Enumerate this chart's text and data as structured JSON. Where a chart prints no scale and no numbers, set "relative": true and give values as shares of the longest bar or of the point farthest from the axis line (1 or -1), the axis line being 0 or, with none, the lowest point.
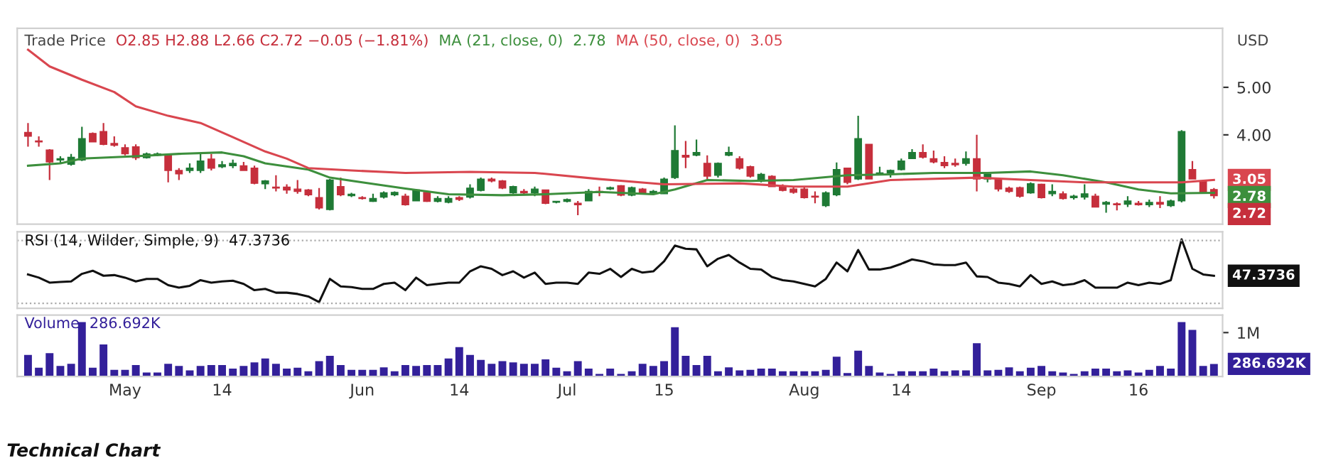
{
  "chart_data": [
    {
      "type": "candlestick",
      "annotations": [
        "Technical Chart"
      ],
      "title": "Trade Price",
      "subtitle": "O2.85 H2.88 L2.66 C2.72 −0.05 (−1.81%)",
      "ylabel": "USD",
      "tick_labels": "y",
      "ylim": [
        2.12,
        6.24
      ],
      "yticks": [
        {
          "value": 4,
          "label": "4.00"
        },
        {
          "value": 5,
          "label": "5.00"
        }
      ],
      "series": [
        {
          "type": "candlestick",
          "ohlc": [
            [
              4.05,
              4.25,
              3.75,
              3.97
            ],
            [
              3.87,
              3.97,
              3.75,
              3.85
            ],
            [
              3.68,
              3.7,
              3.05,
              3.43
            ],
            [
              3.47,
              3.55,
              3.4,
              3.5
            ],
            [
              3.38,
              3.6,
              3.35,
              3.53
            ],
            [
              3.47,
              4.17,
              3.45,
              3.92
            ],
            [
              4.03,
              4.05,
              3.85,
              3.85
            ],
            [
              4.07,
              4.25,
              3.78,
              3.8
            ],
            [
              3.82,
              3.97,
              3.75,
              3.78
            ],
            [
              3.73,
              3.8,
              3.57,
              3.6
            ],
            [
              3.75,
              3.8,
              3.47,
              3.52
            ],
            [
              3.52,
              3.63,
              3.5,
              3.6
            ],
            [
              3.57,
              3.63,
              3.55,
              3.6
            ],
            [
              3.57,
              3.6,
              3.0,
              3.25
            ],
            [
              3.25,
              3.3,
              3.05,
              3.18
            ],
            [
              3.25,
              3.4,
              3.2,
              3.3
            ],
            [
              3.25,
              3.6,
              3.2,
              3.45
            ],
            [
              3.49,
              3.6,
              3.25,
              3.3
            ],
            [
              3.33,
              3.45,
              3.3,
              3.37
            ],
            [
              3.35,
              3.48,
              3.3,
              3.4
            ],
            [
              3.35,
              3.43,
              3.25,
              3.25
            ],
            [
              3.3,
              3.35,
              2.96,
              2.98
            ],
            [
              2.97,
              3.05,
              2.86,
              3.03
            ],
            [
              2.9,
              3.15,
              2.81,
              2.88
            ],
            [
              2.9,
              2.96,
              2.76,
              2.84
            ],
            [
              2.86,
              3.05,
              2.76,
              2.81
            ],
            [
              2.84,
              2.86,
              2.71,
              2.74
            ],
            [
              2.68,
              2.88,
              2.43,
              2.46
            ],
            [
              2.43,
              3.07,
              2.41,
              3.05
            ],
            [
              2.91,
              3.1,
              2.71,
              2.74
            ],
            [
              2.72,
              2.78,
              2.69,
              2.75
            ],
            [
              2.68,
              2.71,
              2.64,
              2.66
            ],
            [
              2.6,
              2.76,
              2.59,
              2.66
            ],
            [
              2.69,
              2.81,
              2.66,
              2.78
            ],
            [
              2.74,
              2.81,
              2.71,
              2.79
            ],
            [
              2.71,
              2.76,
              2.51,
              2.53
            ],
            [
              2.61,
              2.86,
              2.61,
              2.84
            ],
            [
              2.79,
              2.81,
              2.59,
              2.6
            ],
            [
              2.6,
              2.71,
              2.58,
              2.66
            ],
            [
              2.58,
              2.71,
              2.56,
              2.66
            ],
            [
              2.68,
              2.71,
              2.61,
              2.64
            ],
            [
              2.69,
              2.96,
              2.66,
              2.88
            ],
            [
              2.83,
              3.1,
              2.81,
              3.07
            ],
            [
              3.07,
              3.1,
              3.0,
              3.03
            ],
            [
              3.03,
              3.05,
              2.86,
              2.88
            ],
            [
              2.78,
              2.93,
              2.76,
              2.91
            ],
            [
              2.81,
              2.86,
              2.74,
              2.78
            ],
            [
              2.78,
              2.91,
              2.71,
              2.86
            ],
            [
              2.84,
              2.84,
              2.54,
              2.56
            ],
            [
              2.58,
              2.61,
              2.56,
              2.6
            ],
            [
              2.6,
              2.66,
              2.58,
              2.64
            ],
            [
              2.56,
              2.61,
              2.31,
              2.53
            ],
            [
              2.61,
              2.86,
              2.61,
              2.81
            ],
            [
              2.81,
              2.91,
              2.71,
              2.79
            ],
            [
              2.86,
              2.91,
              2.84,
              2.89
            ],
            [
              2.93,
              2.94,
              2.71,
              2.73
            ],
            [
              2.73,
              2.91,
              2.71,
              2.89
            ],
            [
              2.86,
              2.88,
              2.76,
              2.78
            ],
            [
              2.76,
              2.84,
              2.74,
              2.81
            ],
            [
              2.76,
              3.1,
              2.76,
              3.07
            ],
            [
              3.1,
              4.2,
              3.07,
              3.67
            ],
            [
              3.57,
              3.87,
              3.3,
              3.53
            ],
            [
              3.57,
              3.9,
              3.55,
              3.63
            ],
            [
              3.4,
              3.57,
              3.07,
              3.13
            ],
            [
              3.15,
              3.42,
              3.1,
              3.4
            ],
            [
              3.57,
              3.75,
              3.55,
              3.63
            ],
            [
              3.5,
              3.55,
              3.27,
              3.3
            ],
            [
              3.33,
              3.35,
              3.1,
              3.13
            ],
            [
              3.03,
              3.2,
              3.0,
              3.17
            ],
            [
              3.13,
              3.15,
              2.91,
              2.91
            ],
            [
              2.91,
              2.96,
              2.81,
              2.83
            ],
            [
              2.86,
              2.91,
              2.76,
              2.79
            ],
            [
              2.86,
              2.91,
              2.66,
              2.68
            ],
            [
              2.71,
              2.81,
              2.56,
              2.69
            ],
            [
              2.51,
              2.81,
              2.48,
              2.78
            ],
            [
              2.74,
              3.42,
              2.71,
              3.27
            ],
            [
              3.3,
              3.3,
              2.96,
              3.0
            ],
            [
              3.07,
              4.4,
              3.05,
              3.92
            ],
            [
              3.8,
              3.8,
              3.07,
              3.07
            ],
            [
              3.17,
              3.33,
              3.15,
              3.2
            ],
            [
              3.2,
              3.27,
              3.1,
              3.25
            ],
            [
              3.27,
              3.5,
              3.25,
              3.45
            ],
            [
              3.5,
              3.7,
              3.5,
              3.63
            ],
            [
              3.63,
              3.8,
              3.5,
              3.53
            ],
            [
              3.5,
              3.67,
              3.4,
              3.43
            ],
            [
              3.42,
              3.55,
              3.3,
              3.35
            ],
            [
              3.4,
              3.5,
              3.33,
              3.37
            ],
            [
              3.4,
              3.65,
              3.35,
              3.5
            ],
            [
              3.5,
              4.0,
              2.81,
              3.07
            ],
            [
              3.07,
              3.2,
              3.0,
              3.17
            ],
            [
              3.07,
              3.1,
              2.81,
              2.86
            ],
            [
              2.88,
              2.91,
              2.78,
              2.81
            ],
            [
              2.89,
              2.91,
              2.68,
              2.71
            ],
            [
              2.78,
              3.0,
              2.76,
              2.97
            ],
            [
              2.96,
              2.97,
              2.66,
              2.68
            ],
            [
              2.76,
              2.96,
              2.71,
              2.81
            ],
            [
              2.76,
              2.81,
              2.64,
              2.66
            ],
            [
              2.68,
              2.74,
              2.64,
              2.71
            ],
            [
              2.69,
              2.96,
              2.64,
              2.76
            ],
            [
              2.71,
              2.76,
              2.48,
              2.48
            ],
            [
              2.54,
              2.61,
              2.36,
              2.58
            ],
            [
              2.55,
              2.58,
              2.41,
              2.53
            ],
            [
              2.54,
              2.71,
              2.48,
              2.61
            ],
            [
              2.56,
              2.61,
              2.51,
              2.53
            ],
            [
              2.53,
              2.64,
              2.48,
              2.58
            ],
            [
              2.58,
              2.71,
              2.46,
              2.54
            ],
            [
              2.51,
              2.64,
              2.48,
              2.61
            ],
            [
              2.61,
              4.1,
              2.58,
              4.07
            ],
            [
              3.27,
              3.45,
              3.07,
              3.07
            ],
            [
              3.03,
              3.05,
              2.76,
              2.78
            ],
            [
              2.85,
              2.88,
              2.66,
              2.72
            ]
          ],
          "colors": [
            "#c62f3c",
            "#c62f3c",
            "#c62f3c",
            "#1f7a35",
            "#1f7a35",
            "#1f7a35",
            "#c62f3c",
            "#c62f3c",
            "#c62f3c",
            "#c62f3c",
            "#c62f3c",
            "#1f7a35",
            "#1f7a35",
            "#c62f3c",
            "#c62f3c",
            "#1f7a35",
            "#1f7a35",
            "#c62f3c",
            "#1f7a35",
            "#1f7a35",
            "#c62f3c",
            "#c62f3c",
            "#1f7a35",
            "#c62f3c",
            "#c62f3c",
            "#c62f3c",
            "#c62f3c",
            "#c62f3c",
            "#1f7a35",
            "#c62f3c",
            "#1f7a35",
            "#c62f3c",
            "#1f7a35",
            "#1f7a35",
            "#1f7a35",
            "#c62f3c",
            "#1f7a35",
            "#c62f3c",
            "#1f7a35",
            "#1f7a35",
            "#c62f3c",
            "#1f7a35",
            "#1f7a35",
            "#c62f3c",
            "#c62f3c",
            "#1f7a35",
            "#c62f3c",
            "#1f7a35",
            "#c62f3c",
            "#1f7a35",
            "#1f7a35",
            "#c62f3c",
            "#1f7a35",
            "#c62f3c",
            "#1f7a35",
            "#c62f3c",
            "#1f7a35",
            "#c62f3c",
            "#1f7a35",
            "#1f7a35",
            "#1f7a35",
            "#c62f3c",
            "#1f7a35",
            "#c62f3c",
            "#1f7a35",
            "#1f7a35",
            "#c62f3c",
            "#c62f3c",
            "#1f7a35",
            "#c62f3c",
            "#c62f3c",
            "#c62f3c",
            "#c62f3c",
            "#c62f3c",
            "#1f7a35",
            "#1f7a35",
            "#c62f3c",
            "#1f7a35",
            "#c62f3c",
            "#1f7a35",
            "#1f7a35",
            "#1f7a35",
            "#1f7a35",
            "#c62f3c",
            "#c62f3c",
            "#c62f3c",
            "#c62f3c",
            "#1f7a35",
            "#c62f3c",
            "#1f7a35",
            "#c62f3c",
            "#c62f3c",
            "#c62f3c",
            "#1f7a35",
            "#c62f3c",
            "#1f7a35",
            "#c62f3c",
            "#1f7a35",
            "#1f7a35",
            "#c62f3c",
            "#1f7a35",
            "#c62f3c",
            "#1f7a35",
            "#c62f3c",
            "#1f7a35",
            "#c62f3c",
            "#1f7a35",
            "#1f7a35",
            "#c62f3c",
            "#c62f3c",
            "#c62f3c"
          ],
          "value_labels": [
            null,
            null,
            null,
            null,
            null,
            null,
            null,
            null,
            null,
            null,
            null,
            null,
            null,
            null,
            null,
            null,
            null,
            null,
            null,
            null,
            null,
            null,
            null,
            null,
            null,
            null,
            null,
            null,
            null,
            null,
            null,
            null,
            null,
            null,
            null,
            null,
            null,
            null,
            null,
            null,
            null,
            null,
            null,
            null,
            null,
            null,
            null,
            null,
            null,
            null,
            null,
            null,
            null,
            null,
            null,
            null,
            null,
            null,
            null,
            null,
            null,
            null,
            null,
            null,
            null,
            null,
            null,
            null,
            null,
            null,
            null,
            null,
            null,
            null,
            null,
            null,
            null,
            null,
            null,
            null,
            null,
            null,
            null,
            null,
            null,
            null,
            null,
            null,
            null,
            null,
            null,
            null,
            null,
            null,
            null,
            null,
            null,
            null,
            null,
            null,
            null,
            null,
            null,
            null,
            null,
            null,
            null,
            null,
            null,
            null,
            "2.72"
          ]
        },
        {
          "type": "line",
          "name": "MA (21, close, 0)",
          "color": "#3d8f3d",
          "values": [
            3.35,
            null,
            null,
            3.4,
            null,
            3.5,
            null,
            null,
            null,
            null,
            3.55,
            null,
            null,
            null,
            3.6,
            null,
            null,
            null,
            3.63,
            null,
            3.55,
            null,
            3.4,
            null,
            null,
            null,
            3.27,
            null,
            3.1,
            null,
            null,
            3.0,
            null,
            null,
            null,
            2.87,
            null,
            null,
            null,
            2.75,
            null,
            null,
            null,
            null,
            2.73,
            null,
            null,
            null,
            2.75,
            null,
            null,
            null,
            null,
            2.8,
            null,
            null,
            null,
            null,
            2.75,
            null,
            2.85,
            null,
            null,
            3.05,
            null,
            null,
            null,
            3.03,
            null,
            null,
            null,
            3.05,
            null,
            null,
            null,
            null,
            3.15,
            null,
            null,
            null,
            3.17,
            null,
            null,
            null,
            3.2,
            null,
            null,
            null,
            null,
            3.2,
            null,
            null,
            null,
            3.23,
            null,
            null,
            3.15,
            null,
            null,
            null,
            3.0,
            null,
            null,
            2.85,
            null,
            null,
            2.77,
            null,
            null,
            null,
            2.78
          ],
          "value_labels": [
            null,
            null,
            null,
            null,
            null,
            null,
            null,
            null,
            null,
            null,
            null,
            null,
            null,
            null,
            null,
            null,
            null,
            null,
            null,
            null,
            null,
            null,
            null,
            null,
            null,
            null,
            null,
            null,
            null,
            null,
            null,
            null,
            null,
            null,
            null,
            null,
            null,
            null,
            null,
            null,
            null,
            null,
            null,
            null,
            null,
            null,
            null,
            null,
            null,
            null,
            null,
            null,
            null,
            null,
            null,
            null,
            null,
            null,
            null,
            null,
            null,
            null,
            null,
            null,
            null,
            null,
            null,
            null,
            null,
            null,
            null,
            null,
            null,
            null,
            null,
            null,
            null,
            null,
            null,
            null,
            null,
            null,
            null,
            null,
            null,
            null,
            null,
            null,
            null,
            null,
            null,
            null,
            null,
            null,
            null,
            null,
            null,
            null,
            null,
            null,
            null,
            null,
            null,
            null,
            null,
            null,
            null,
            null,
            null,
            null,
            "2.78"
          ]
        },
        {
          "type": "line",
          "name": "MA (50, close, 0)",
          "color": "#d9464f",
          "values": [
            5.79,
            null,
            5.44,
            null,
            null,
            5.16,
            null,
            null,
            4.9,
            null,
            4.6,
            null,
            null,
            4.4,
            null,
            null,
            4.25,
            null,
            null,
            3.95,
            null,
            null,
            3.65,
            null,
            3.5,
            null,
            3.3,
            null,
            null,
            null,
            3.25,
            null,
            null,
            null,
            null,
            3.2,
            null,
            null,
            null,
            null,
            null,
            3.22,
            null,
            null,
            null,
            null,
            null,
            3.2,
            null,
            null,
            null,
            null,
            null,
            3.07,
            null,
            null,
            null,
            null,
            null,
            2.96,
            null,
            null,
            null,
            null,
            null,
            null,
            2.98,
            null,
            null,
            null,
            null,
            2.91,
            null,
            null,
            null,
            null,
            2.91,
            null,
            null,
            null,
            3.05,
            null,
            null,
            null,
            null,
            null,
            null,
            null,
            3.1,
            null,
            null,
            null,
            null,
            3.05,
            null,
            null,
            null,
            null,
            3.0,
            null,
            null,
            null,
            3.0,
            null,
            null,
            null,
            null,
            3.0,
            null,
            null,
            3.05
          ],
          "value_labels": [
            null,
            null,
            null,
            null,
            null,
            null,
            null,
            null,
            null,
            null,
            null,
            null,
            null,
            null,
            null,
            null,
            null,
            null,
            null,
            null,
            null,
            null,
            null,
            null,
            null,
            null,
            null,
            null,
            null,
            null,
            null,
            null,
            null,
            null,
            null,
            null,
            null,
            null,
            null,
            null,
            null,
            null,
            null,
            null,
            null,
            null,
            null,
            null,
            null,
            null,
            null,
            null,
            null,
            null,
            null,
            null,
            null,
            null,
            null,
            null,
            null,
            null,
            null,
            null,
            null,
            null,
            null,
            null,
            null,
            null,
            null,
            null,
            null,
            null,
            null,
            null,
            null,
            null,
            null,
            null,
            null,
            null,
            null,
            null,
            null,
            null,
            null,
            null,
            null,
            null,
            null,
            null,
            null,
            null,
            null,
            null,
            null,
            null,
            null,
            null,
            null,
            null,
            null,
            null,
            null,
            null,
            null,
            null,
            null,
            null,
            "3.05"
          ]
        }
      ]
    },
    {
      "type": "line",
      "relative": true,
      "tick_labels": false,
      "annotations": [
        "47.3736"
      ],
      "ref_lines": [
        {
          "axis": "y",
          "value": 0.98,
          "line_style": "dotted",
          "color": "#aaaaaa"
        },
        {
          "axis": "y",
          "value": -0.02,
          "line_style": "dotted",
          "color": "#aaaaaa"
        }
      ],
      "series": [
        {
          "name": "RSI (14, Wilder, Simple, 9)",
          "color": "#111111",
          "values": [
            0.44,
            0.39,
            0.31,
            0.32,
            0.33,
            0.45,
            0.5,
            0.42,
            0.43,
            0.39,
            0.33,
            0.37,
            0.37,
            0.27,
            0.23,
            0.26,
            0.35,
            0.31,
            0.33,
            0.34,
            0.29,
            0.19,
            0.21,
            0.15,
            0.15,
            0.13,
            0.09,
            0,
            0.37,
            0.25,
            0.24,
            0.21,
            0.21,
            0.29,
            0.31,
            0.19,
            0.39,
            0.27,
            0.29,
            0.31,
            0.31,
            0.49,
            0.57,
            0.53,
            0.43,
            0.49,
            0.39,
            0.47,
            0.29,
            0.31,
            0.31,
            0.29,
            0.47,
            0.45,
            0.53,
            0.4,
            0.53,
            0.47,
            0.49,
            0.65,
            0.9,
            0.85,
            0.84,
            0.57,
            0.69,
            0.75,
            0.63,
            0.53,
            0.52,
            0.4,
            0.35,
            0.33,
            0.29,
            0.25,
            0.37,
            0.63,
            0.49,
            0.83,
            0.52,
            0.52,
            0.55,
            0.61,
            0.68,
            0.65,
            0.6,
            0.59,
            0.59,
            0.63,
            0.41,
            0.4,
            0.31,
            0.29,
            0.25,
            0.43,
            0.29,
            0.33,
            0.27,
            0.29,
            0.35,
            0.23,
            0.23,
            0.23,
            0.31,
            0.27,
            0.31,
            0.29,
            0.35,
            1,
            0.53,
            0.44,
            0.42
          ]
        }
      ]
    },
    {
      "type": "bar",
      "annotations": [
        "286.692K"
      ],
      "categories": [
        null,
        null,
        null,
        null,
        null,
        null,
        null,
        null,
        null,
        "May",
        null,
        null,
        null,
        null,
        null,
        null,
        null,
        null,
        "14",
        null,
        null,
        null,
        null,
        null,
        null,
        null,
        null,
        null,
        null,
        null,
        null,
        "Jun",
        null,
        null,
        null,
        null,
        null,
        null,
        null,
        null,
        "14",
        null,
        null,
        null,
        null,
        null,
        null,
        null,
        null,
        null,
        "Jul",
        null,
        null,
        null,
        null,
        null,
        null,
        null,
        null,
        "15",
        null,
        null,
        null,
        null,
        null,
        null,
        null,
        null,
        null,
        null,
        null,
        null,
        "Aug",
        null,
        null,
        null,
        null,
        null,
        null,
        null,
        null,
        "14",
        null,
        null,
        null,
        null,
        null,
        null,
        null,
        null,
        null,
        null,
        null,
        null,
        "Sep",
        null,
        null,
        null,
        null,
        null,
        null,
        null,
        null,
        "16",
        null,
        null,
        null,
        null,
        null,
        null,
        null
      ],
      "ylim": [
        0,
        1400000
      ],
      "yticks": [
        {
          "value": 1000000,
          "label": "1M"
        }
      ],
      "series": [
        {
          "name": "Volume",
          "color": "#33209a",
          "values": [
            490000,
            200000,
            530000,
            240000,
            290000,
            1240000,
            200000,
            730000,
            150000,
            150000,
            260000,
            90000,
            90000,
            290000,
            240000,
            140000,
            240000,
            260000,
            260000,
            180000,
            240000,
            320000,
            410000,
            290000,
            180000,
            200000,
            120000,
            350000,
            470000,
            260000,
            150000,
            150000,
            150000,
            210000,
            120000,
            260000,
            240000,
            260000,
            260000,
            410000,
            670000,
            490000,
            380000,
            290000,
            350000,
            320000,
            290000,
            290000,
            390000,
            200000,
            120000,
            350000,
            180000,
            60000,
            180000,
            60000,
            120000,
            290000,
            240000,
            350000,
            1120000,
            470000,
            260000,
            470000,
            120000,
            210000,
            140000,
            150000,
            180000,
            180000,
            120000,
            120000,
            120000,
            120000,
            150000,
            450000,
            80000,
            590000,
            240000,
            90000,
            60000,
            120000,
            120000,
            120000,
            180000,
            120000,
            140000,
            140000,
            760000,
            140000,
            150000,
            210000,
            120000,
            200000,
            240000,
            120000,
            90000,
            60000,
            120000,
            180000,
            180000,
            120000,
            140000,
            90000,
            150000,
            240000,
            180000,
            1240000,
            1060000,
            240000,
            286692
          ]
        }
      ]
    }
  ]
}
